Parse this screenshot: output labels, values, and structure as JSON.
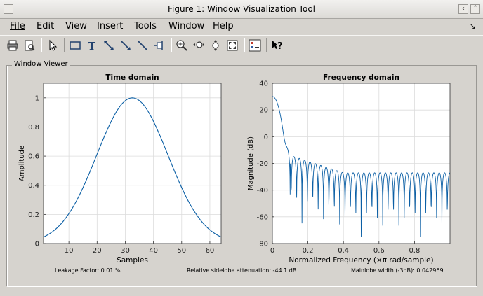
{
  "window": {
    "title": "Figure 1: Window Visualization Tool"
  },
  "menu": [
    "File",
    "Edit",
    "View",
    "Insert",
    "Tools",
    "Window",
    "Help"
  ],
  "toolbar": [
    "print-icon",
    "print-preview-icon",
    "pointer-icon",
    "rectangle-icon",
    "text-icon",
    "double-arrow-icon",
    "arrow-icon",
    "line-icon",
    "pin-icon",
    "zoom-in-icon",
    "zoom-x-icon",
    "zoom-y-icon",
    "full-view-icon",
    "legend-icon",
    "whats-this-icon"
  ],
  "panel": {
    "label": "Window Viewer"
  },
  "chart_data": [
    {
      "type": "line",
      "title": "Time domain",
      "xlabel": "Samples",
      "ylabel": "Amplitude",
      "xlim": [
        1,
        64
      ],
      "ylim": [
        0,
        1.1
      ],
      "xticks": [
        "10",
        "20",
        "30",
        "40",
        "50",
        "60"
      ],
      "yticks": [
        "0",
        "0.2",
        "0.4",
        "0.6",
        "0.8",
        "1"
      ],
      "grid": true,
      "series": [
        {
          "shape": "gaussian",
          "center": 32.5,
          "peak": 1.0,
          "edge_value": 0.045
        }
      ]
    },
    {
      "type": "line",
      "title": "Frequency domain",
      "xlabel": "Normalized Frequency  (×π rad/sample)",
      "ylabel": "Magnitude (dB)",
      "xlim": [
        0,
        1
      ],
      "ylim": [
        -80,
        40
      ],
      "xticks": [
        "0",
        "0.2",
        "0.4",
        "0.6",
        "0.8"
      ],
      "yticks": [
        "-80",
        "-60",
        "-40",
        "-20",
        "0",
        "20",
        "40"
      ],
      "grid": true,
      "series": [
        {
          "mainlobe_peak_db": 30.1,
          "sidelobe_start_db": -14,
          "sidelobe_end_db": -27
        }
      ]
    }
  ],
  "status": {
    "leakage": "Leakage Factor: 0.01 %",
    "sidelobe": "Relative sidelobe attenuation: -44.1 dB",
    "mainlobe": "Mainlobe width (-3dB): 0.042969"
  }
}
